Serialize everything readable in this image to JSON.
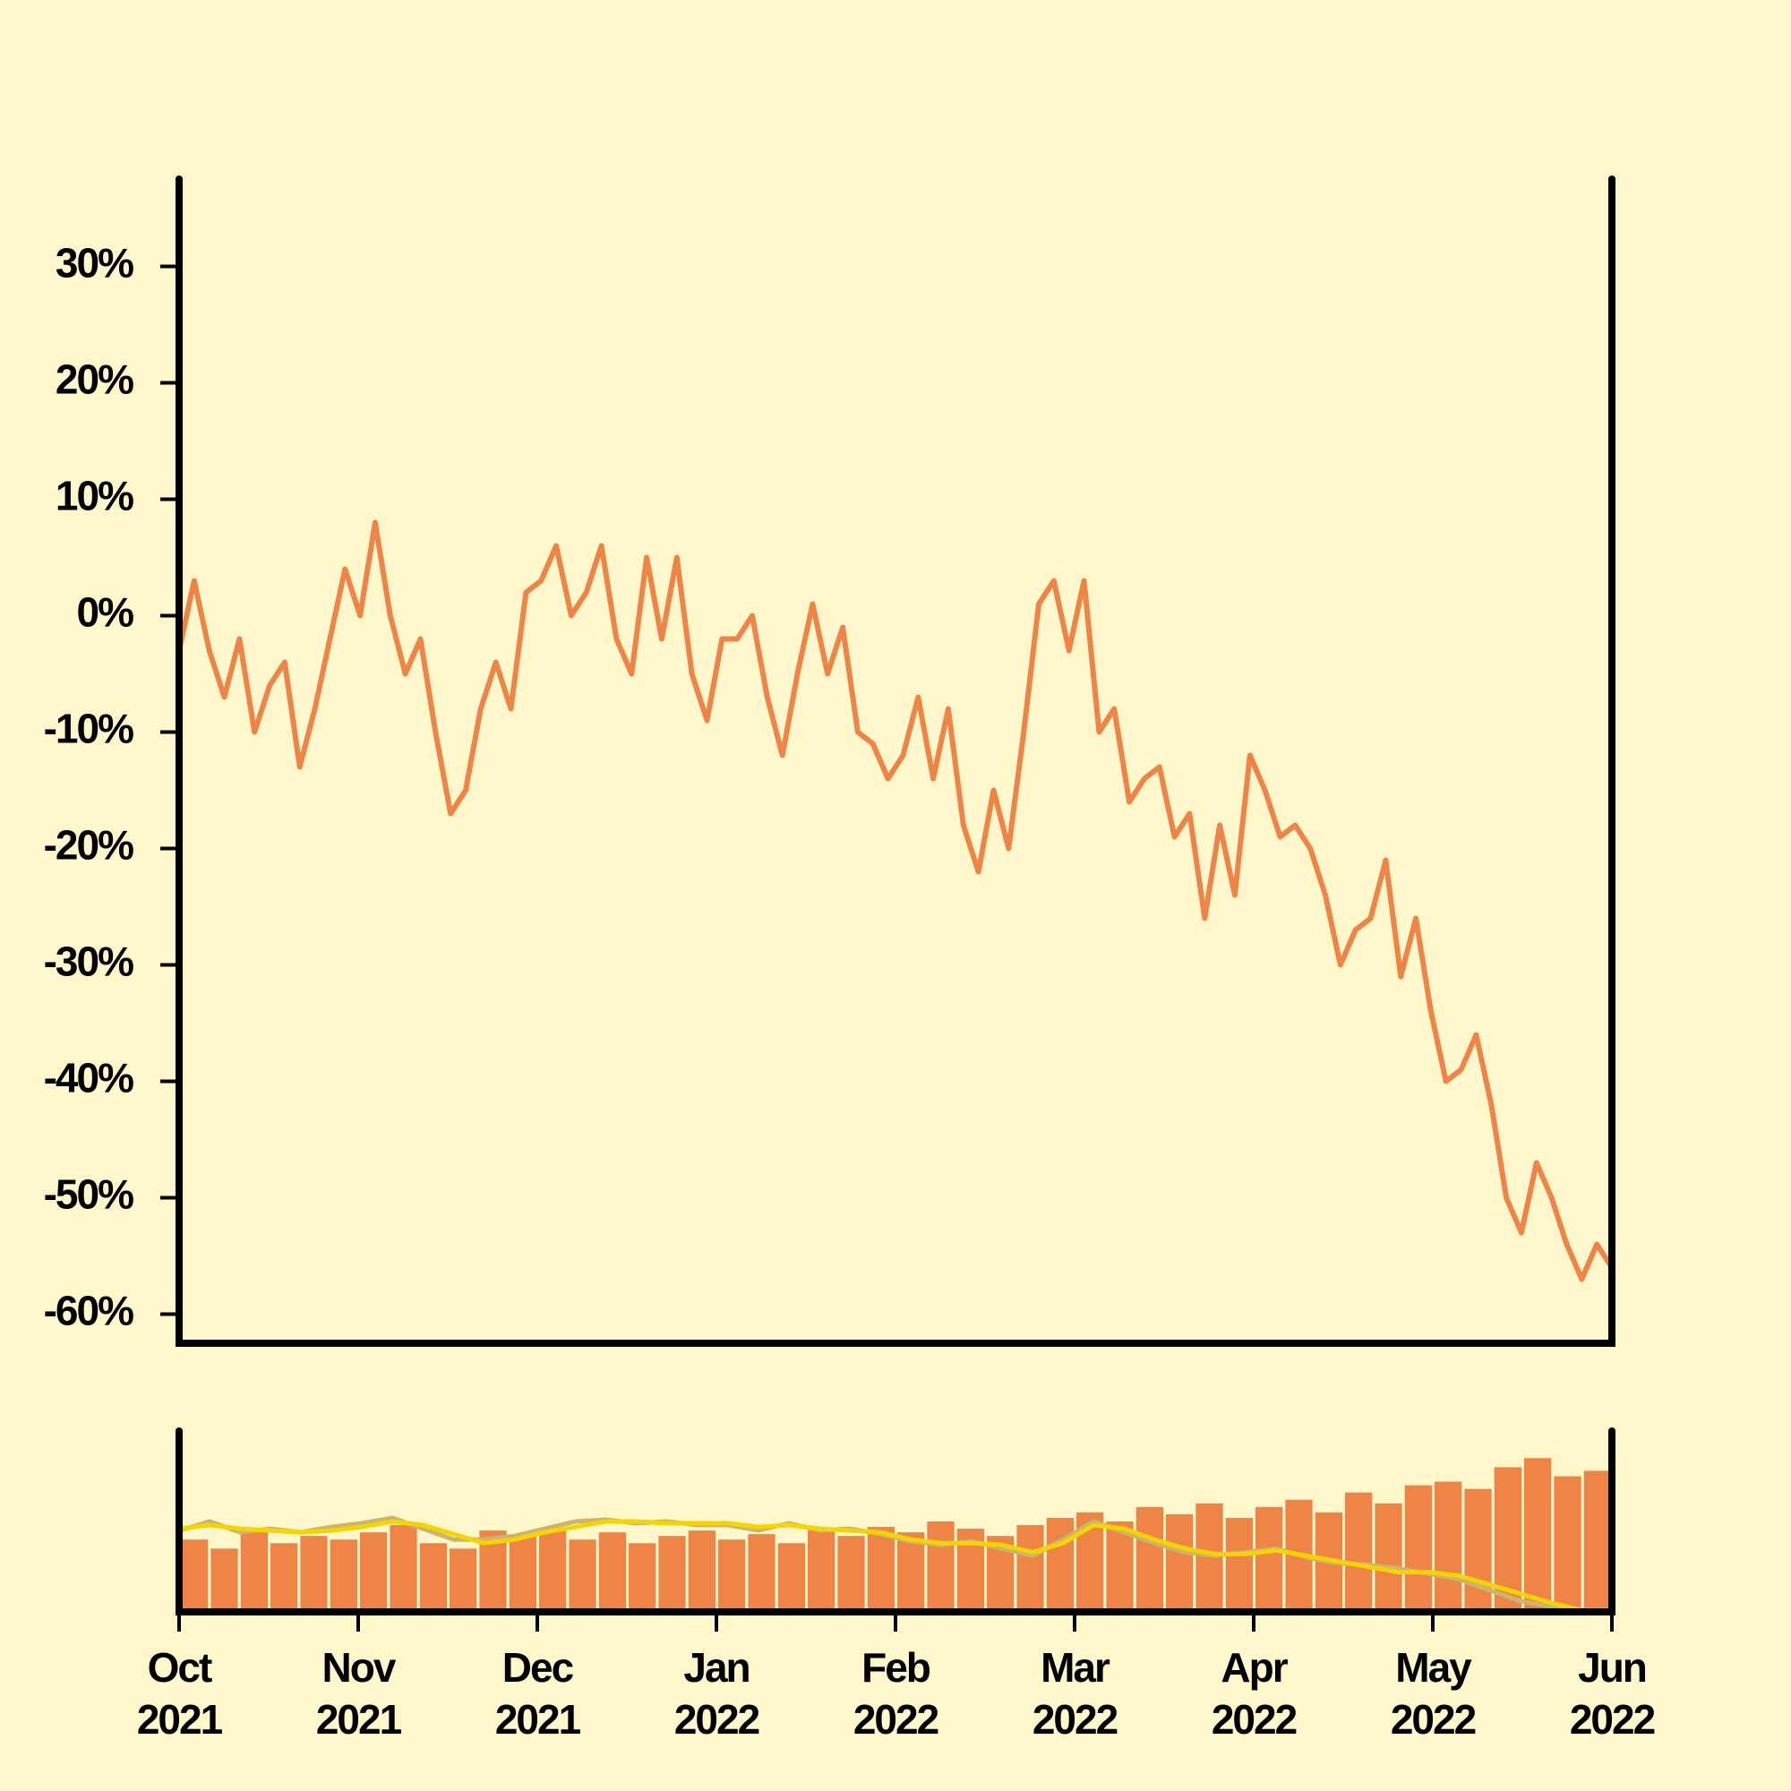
{
  "chart_data": [
    {
      "type": "line",
      "series": [
        {
          "color": "#ee8547",
          "values": [
            -3,
            3,
            -3,
            -7,
            -2,
            -10,
            -6,
            -4,
            -13,
            -8,
            -2,
            4,
            0,
            8,
            0,
            -5,
            -2,
            -10,
            -17,
            -15,
            -8,
            -4,
            -8,
            2,
            3,
            6,
            0,
            2,
            6,
            -2,
            -5,
            5,
            -2,
            5,
            -5,
            -9,
            -2,
            -2,
            0,
            -7,
            -12,
            -5,
            1,
            -5,
            -1,
            -10,
            -11,
            -14,
            -12,
            -7,
            -14,
            -8,
            -18,
            -22,
            -15,
            -20,
            -10,
            1,
            3,
            -3,
            3,
            -10,
            -8,
            -16,
            -14,
            -13,
            -19,
            -17,
            -26,
            -18,
            -24,
            -12,
            -15,
            -19,
            -18,
            -20,
            -24,
            -30,
            -27,
            -26,
            -21,
            -31,
            -26,
            -34,
            -40,
            -39,
            -36,
            -42,
            -50,
            -53,
            -47,
            -50,
            -54,
            -57,
            -54,
            -56
          ]
        }
      ],
      "ylim": [
        -62.5,
        37.5
      ],
      "yticks": [
        {
          "value": -60,
          "label": "-60%"
        },
        {
          "value": -50,
          "label": "-50%"
        },
        {
          "value": -40,
          "label": "-40%"
        },
        {
          "value": -30,
          "label": "-30%"
        },
        {
          "value": -20,
          "label": "-20%"
        },
        {
          "value": -10,
          "label": "-10%"
        },
        {
          "value": 0,
          "label": "0%"
        },
        {
          "value": 10,
          "label": "10%"
        },
        {
          "value": 20,
          "label": "20%"
        },
        {
          "value": 30,
          "label": "30%"
        }
      ]
    },
    {
      "type": "combo",
      "series": [
        {
          "type": "bar",
          "color": "#ee8547",
          "values": [
            40,
            35,
            45,
            38,
            42,
            40,
            44,
            48,
            38,
            35,
            45,
            42,
            46,
            40,
            44,
            38,
            42,
            45,
            40,
            43,
            38,
            45,
            42,
            47,
            44,
            50,
            46,
            42,
            48,
            52,
            55,
            50,
            58,
            54,
            60,
            52,
            58,
            62,
            55,
            66,
            60,
            70,
            72,
            68,
            80,
            85,
            75,
            78
          ]
        },
        {
          "type": "line",
          "color": "#c9b56d",
          "values": [
            45,
            50,
            44,
            46,
            44,
            47,
            49,
            52,
            46,
            40,
            40,
            42,
            46,
            50,
            51,
            49,
            50,
            48,
            48,
            45,
            49,
            45,
            46,
            43,
            39,
            37,
            39,
            35,
            31,
            40,
            50,
            44,
            38,
            33,
            31,
            33,
            35,
            30,
            27,
            26,
            24,
            21,
            18,
            12,
            6,
            3,
            1,
            1
          ]
        },
        {
          "type": "line",
          "color": "#f5d400",
          "values": [
            46,
            48,
            46,
            45,
            44,
            45,
            47,
            50,
            48,
            43,
            38,
            40,
            44,
            47,
            50,
            50,
            49,
            49,
            49,
            47,
            48,
            46,
            45,
            44,
            40,
            38,
            38,
            37,
            33,
            38,
            48,
            46,
            40,
            35,
            32,
            32,
            34,
            31,
            28,
            25,
            22,
            22,
            20,
            15,
            10,
            5,
            1,
            0
          ]
        }
      ],
      "ylim": [
        0,
        100
      ],
      "xticks": [
        "Oct\n2021",
        "Nov\n2021",
        "Dec\n2021",
        "Jan\n2022",
        "Feb\n2022",
        "Mar\n2022",
        "Apr\n2022",
        "May\n2022",
        "Jun\n2022"
      ]
    }
  ]
}
